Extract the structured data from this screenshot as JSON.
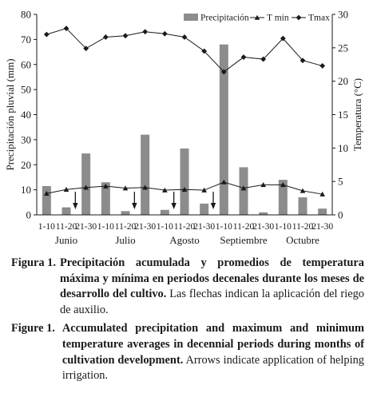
{
  "chart_data": {
    "type": "bar+line",
    "title": "",
    "categories": [
      "1-10",
      "11-20",
      "21-30",
      "1-10",
      "11-20",
      "21-30",
      "1-10",
      "11-20",
      "21-30",
      "1-10",
      "11-20",
      "21-30",
      "1-10",
      "11-20",
      "21-30"
    ],
    "months": [
      "Junio",
      "Julio",
      "Agosto",
      "Septiembre",
      "Octubre"
    ],
    "ylabel_left": "Precipitación pluvial (mm)",
    "ylabel_right": "Temperatura (°C)",
    "ylim_left": [
      0,
      80
    ],
    "yticks_left": [
      "0",
      "10",
      "20",
      "30",
      "40",
      "50",
      "60",
      "70",
      "80"
    ],
    "ylim_right": [
      0,
      30
    ],
    "yticks_right": [
      "0",
      "5",
      "10",
      "15",
      "20",
      "25",
      "30"
    ],
    "grid": false,
    "legend_position": "top-right",
    "series": [
      {
        "name": "Precipitación",
        "axis": "left",
        "kind": "bar",
        "color": "#8c8c8c",
        "values": [
          11.5,
          3.0,
          24.5,
          13.0,
          1.5,
          32.0,
          2.0,
          26.5,
          4.5,
          68.0,
          19.0,
          1.0,
          14.0,
          7.0,
          2.5
        ]
      },
      {
        "name": "T min",
        "axis": "right",
        "kind": "line",
        "marker": "triangle",
        "color": "#1a1a1a",
        "values": [
          3.2,
          3.8,
          4.1,
          4.3,
          4.0,
          4.1,
          3.7,
          3.8,
          3.7,
          4.9,
          4.0,
          4.5,
          4.5,
          3.6,
          3.1
        ]
      },
      {
        "name": "Tmax",
        "axis": "right",
        "kind": "line",
        "marker": "diamond",
        "color": "#1a1a1a",
        "values": [
          27.0,
          27.9,
          24.9,
          26.6,
          26.8,
          27.4,
          27.1,
          26.6,
          24.5,
          21.4,
          23.6,
          23.3,
          26.4,
          23.1,
          22.3
        ]
      }
    ],
    "arrows_at_index": [
      1,
      4,
      6,
      8
    ]
  },
  "caption": {
    "es_label": "Figura 1.",
    "es_bold": "Precipitación acumulada y promedios de temperatura máxima y mínima en periodos decenales durante los meses de desarrollo del cultivo.",
    "es_plain": "Las flechas indican la aplicación del riego de auxilio.",
    "en_label": "Figure 1.",
    "en_bold": "Accumulated precipitation and maximum and minimum temperature averages in decennial periods during months of cultivation development.",
    "en_plain": "Arrows indicate application of helping irrigation."
  }
}
